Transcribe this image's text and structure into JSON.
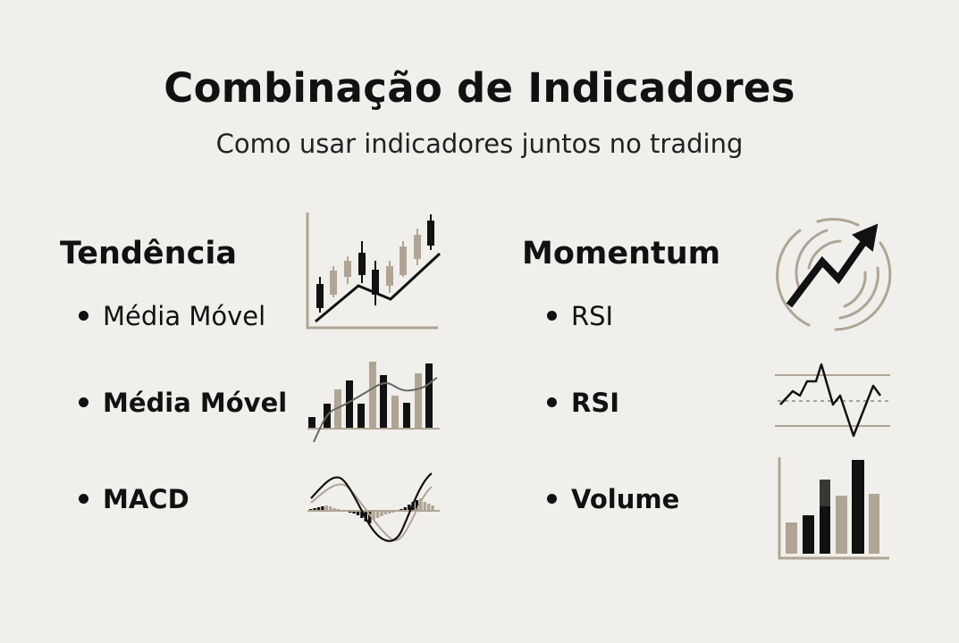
{
  "header": {
    "title": "Combinação de Indicadores",
    "subtitle": "Como usar indicadores juntos no trading"
  },
  "columns": [
    {
      "heading": "Tendência",
      "items": [
        {
          "label": "Média Móvel",
          "icon": "candlestick-trend-icon"
        },
        {
          "label": "Média Móvel",
          "icon": "bars-moving-average-icon"
        },
        {
          "label": "MACD",
          "icon": "macd-histogram-icon"
        }
      ]
    },
    {
      "heading": "Momentum",
      "icon": "momentum-arrow-icon",
      "items": [
        {
          "label": "RSI",
          "icon": "none"
        },
        {
          "label": "RSI",
          "icon": "rsi-oscillator-icon"
        },
        {
          "label": "Volume",
          "icon": "volume-bars-icon"
        }
      ]
    }
  ],
  "colors": {
    "background": "#f0efeb",
    "ink": "#111111",
    "accent_tan": "#b0a595"
  }
}
